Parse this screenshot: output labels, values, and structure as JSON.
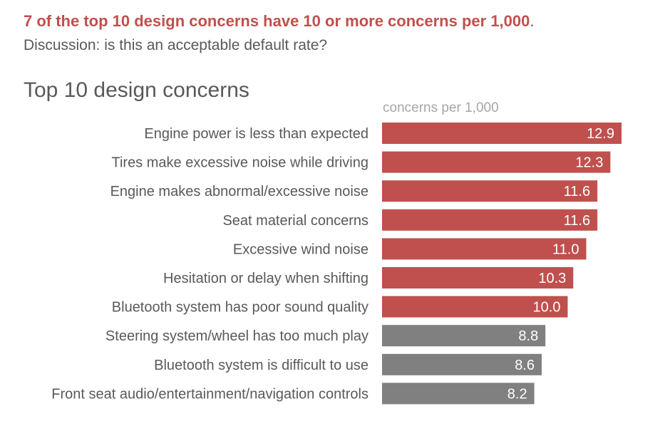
{
  "headline": {
    "main": "7 of the top 10 design concerns have 10 or more concerns per 1,000",
    "period": "."
  },
  "subhead": "Discussion: is this an acceptable default rate?",
  "colors": {
    "highlight": "#c0504d",
    "muted": "#808080",
    "label": "#595959",
    "unit_label": "#a6a6a6"
  },
  "chart_data": {
    "type": "bar",
    "orientation": "horizontal",
    "title": "Top 10 design concerns",
    "unit_label": "concerns per 1,000",
    "categories": [
      "Engine power is less than expected",
      "Tires make excessive noise while driving",
      "Engine makes abnormal/excessive noise",
      "Seat material concerns",
      "Excessive wind noise",
      "Hesitation or delay when shifting",
      "Bluetooth system has poor sound quality",
      "Steering system/wheel has too much play",
      "Bluetooth system is difficult to use",
      "Front seat audio/entertainment/navigation controls"
    ],
    "values": [
      12.9,
      12.3,
      11.6,
      11.6,
      11.0,
      10.3,
      10.0,
      8.8,
      8.6,
      8.2
    ],
    "data_labels": [
      "12.9",
      "12.3",
      "11.6",
      "11.6",
      "11.0",
      "10.3",
      "10.0",
      "8.8",
      "8.6",
      "8.2"
    ],
    "highlight_threshold": 10,
    "xlim": [
      0,
      12.9
    ],
    "grid": false,
    "legend": "none"
  }
}
